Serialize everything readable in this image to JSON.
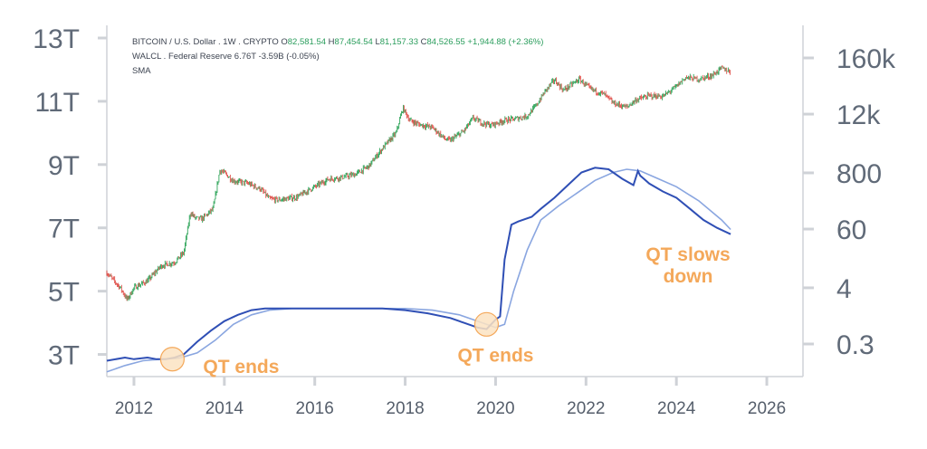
{
  "chart_data": {
    "type": "line",
    "legend": {
      "btc": {
        "label": "BITCOIN / U.S. Dollar . 1W . CRYPTO",
        "o_key": "O",
        "o": "82,581.54",
        "h_key": "H",
        "h": "87,454.54",
        "l_key": "L",
        "l": "81,157.33",
        "c_key": "C",
        "c": "84,526.55",
        "change": "+1,944.88 (+2.36%)"
      },
      "walcl": "WALCL . Federal Reserve 6.76T -3.59B (-0.05%)",
      "sma": "SMA"
    },
    "left_axis": {
      "ticks": [
        3,
        5,
        7,
        9,
        11,
        13
      ],
      "tick_labels": [
        "3T",
        "5T",
        "7T",
        "9T",
        "11T",
        "13T"
      ],
      "range": [
        2.3,
        13.4
      ]
    },
    "right_axis": {
      "scale": "log",
      "tick_values": [
        0.3,
        4,
        60,
        800,
        12000,
        160000
      ],
      "tick_labels": [
        "0.3",
        "4",
        "60",
        "800",
        "12k",
        "160k"
      ]
    },
    "x_axis": {
      "tick_values": [
        2012,
        2014,
        2016,
        2018,
        2020,
        2022,
        2024,
        2026
      ],
      "tick_labels": [
        "2012",
        "2014",
        "2016",
        "2018",
        "2020",
        "2022",
        "2024",
        "2026"
      ],
      "range": [
        2011.4,
        2026.8
      ]
    },
    "colors": {
      "walcl": "#2f4fb5",
      "sma": "#8aa6e0",
      "candle_up": "#2fa55a",
      "candle_down": "#e0504a",
      "annotation": "#f4a85a",
      "highlight_fill": "#fce3c2"
    },
    "series": [
      {
        "key": "walcl",
        "axis": "left",
        "x": [
          2011.4,
          2011.8,
          2012.0,
          2012.3,
          2012.5,
          2012.7,
          2012.9,
          2013.1,
          2013.4,
          2013.7,
          2014.0,
          2014.3,
          2014.6,
          2014.9,
          2015.2,
          2015.6,
          2016.0,
          2016.5,
          2017.0,
          2017.5,
          2018.0,
          2018.5,
          2019.0,
          2019.3,
          2019.6,
          2019.8,
          2020.0,
          2020.1,
          2020.2,
          2020.35,
          2020.5,
          2020.8,
          2021.0,
          2021.3,
          2021.6,
          2021.9,
          2022.2,
          2022.5,
          2022.8,
          2023.05,
          2023.15,
          2023.2,
          2023.4,
          2023.7,
          2024.0,
          2024.3,
          2024.6,
          2024.9,
          2025.2
        ],
        "values": [
          2.8,
          2.9,
          2.85,
          2.9,
          2.85,
          2.85,
          2.9,
          3.0,
          3.4,
          3.75,
          4.05,
          4.25,
          4.4,
          4.45,
          4.45,
          4.45,
          4.45,
          4.45,
          4.45,
          4.45,
          4.4,
          4.3,
          4.15,
          4.0,
          3.85,
          3.8,
          4.1,
          4.2,
          6.0,
          7.1,
          7.2,
          7.35,
          7.6,
          7.95,
          8.35,
          8.75,
          8.9,
          8.85,
          8.55,
          8.35,
          8.8,
          8.65,
          8.4,
          8.15,
          7.95,
          7.6,
          7.25,
          7.0,
          6.8
        ]
      },
      {
        "key": "sma",
        "axis": "left",
        "x": [
          2011.4,
          2011.8,
          2012.2,
          2012.6,
          2013.0,
          2013.4,
          2013.8,
          2014.2,
          2014.6,
          2015.0,
          2015.5,
          2016.0,
          2017.0,
          2018.0,
          2018.6,
          2019.2,
          2019.6,
          2020.0,
          2020.2,
          2020.4,
          2020.7,
          2021.0,
          2021.4,
          2021.8,
          2022.2,
          2022.6,
          2022.9,
          2023.2,
          2023.6,
          2024.0,
          2024.5,
          2025.0,
          2025.2
        ],
        "values": [
          2.45,
          2.65,
          2.8,
          2.85,
          2.88,
          3.05,
          3.45,
          3.95,
          4.25,
          4.4,
          4.45,
          4.45,
          4.45,
          4.45,
          4.4,
          4.25,
          4.05,
          3.85,
          3.95,
          5.0,
          6.3,
          7.25,
          7.7,
          8.1,
          8.5,
          8.75,
          8.85,
          8.8,
          8.55,
          8.3,
          7.85,
          7.25,
          6.95
        ]
      }
    ],
    "btc_series": {
      "axis": "right",
      "x": [
        2011.4,
        2011.7,
        2011.85,
        2012.0,
        2012.3,
        2012.6,
        2012.9,
        2013.1,
        2013.25,
        2013.35,
        2013.5,
        2013.75,
        2013.9,
        2014.0,
        2014.2,
        2014.5,
        2014.8,
        2015.0,
        2015.2,
        2015.6,
        2016.0,
        2016.3,
        2016.6,
        2016.9,
        2017.2,
        2017.5,
        2017.8,
        2017.95,
        2018.1,
        2018.3,
        2018.6,
        2018.9,
        2019.0,
        2019.3,
        2019.5,
        2019.7,
        2019.9,
        2020.2,
        2020.4,
        2020.7,
        2020.9,
        2021.1,
        2021.3,
        2021.5,
        2021.85,
        2022.1,
        2022.4,
        2022.6,
        2022.9,
        2023.1,
        2023.4,
        2023.7,
        2024.0,
        2024.2,
        2024.5,
        2024.8,
        2025.0,
        2025.2
      ],
      "values": [
        8.0,
        4.0,
        2.3,
        4.0,
        5.5,
        11.0,
        13.0,
        20.0,
        130.0,
        100.0,
        95.0,
        150.0,
        900.0,
        800.0,
        550.0,
        500.0,
        380.0,
        240.0,
        230.0,
        260.0,
        420.0,
        600.0,
        650.0,
        750.0,
        1100.0,
        2500.0,
        5000.0,
        16000.0,
        9000.0,
        7500.0,
        6500.0,
        3700.0,
        3600.0,
        5500.0,
        10000.0,
        8000.0,
        7200.0,
        9000.0,
        9500.0,
        11000.0,
        18000.0,
        35000.0,
        58000.0,
        36000.0,
        60000.0,
        38000.0,
        30000.0,
        20000.0,
        16500.0,
        23000.0,
        28000.0,
        27000.0,
        43000.0,
        65000.0,
        60000.0,
        72000.0,
        100000.0,
        84000.0
      ]
    },
    "annotations": [
      {
        "text": "QT ends",
        "x": 2012.85,
        "y": 2.85
      },
      {
        "text": "QT ends",
        "x": 2019.8,
        "y": 3.95
      },
      {
        "text": "QT slows",
        "text2": "down",
        "x": 2025.2,
        "y": 6.8
      }
    ]
  }
}
